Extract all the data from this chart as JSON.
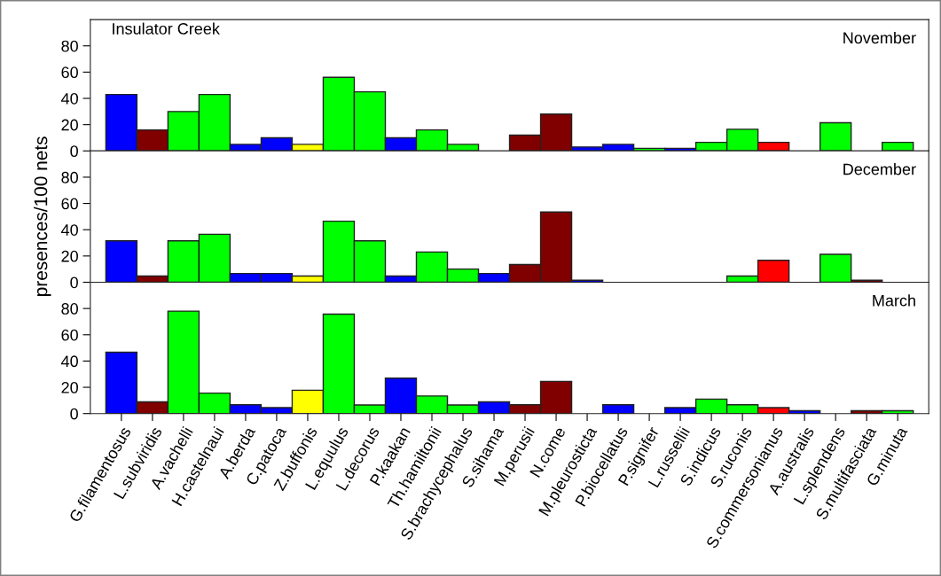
{
  "chart_data": [
    {
      "type": "bar",
      "categories": [
        null,
        null,
        null,
        null,
        null,
        null,
        null,
        null,
        null,
        null,
        null,
        null,
        null,
        null,
        null,
        null,
        null,
        null,
        null,
        null,
        null,
        null,
        null,
        null,
        null,
        null
      ],
      "values": [
        43,
        16,
        30,
        43,
        5,
        10,
        5,
        56,
        45,
        10,
        16,
        5,
        null,
        12,
        28,
        3,
        5,
        2,
        2,
        6.5,
        16.5,
        6.5,
        null,
        21.5,
        null,
        6.5
      ],
      "colors": [
        "#0000ff",
        "#800000",
        "#00ff00",
        "#00ff00",
        "#0000ff",
        "#0000ff",
        "#ffff00",
        "#00ff00",
        "#00ff00",
        "#0000ff",
        "#00ff00",
        "#00ff00",
        "#0000ff",
        "#800000",
        "#800000",
        "#0000ff",
        "#0000ff",
        "#00ff00",
        "#0000ff",
        "#00ff00",
        "#00ff00",
        "#ff0000",
        "#0000ff",
        "#00ff00",
        "#800000",
        "#00ff00"
      ],
      "ylim": [
        0,
        100
      ],
      "yticks": [
        0,
        20,
        40,
        60,
        80
      ],
      "tick_labels": "y",
      "grid": false,
      "legend": false,
      "annotations": [
        "Insulator Creek",
        "November"
      ]
    },
    {
      "type": "bar",
      "categories": [
        null,
        null,
        null,
        null,
        null,
        null,
        null,
        null,
        null,
        null,
        null,
        null,
        null,
        null,
        null,
        null,
        null,
        null,
        null,
        null,
        null,
        null,
        null,
        null,
        null,
        null
      ],
      "values": [
        31.5,
        4.7,
        31.5,
        36.5,
        6.7,
        6.7,
        4.7,
        46.5,
        31.5,
        4.7,
        23,
        10,
        6.7,
        13.5,
        53.5,
        1.5,
        null,
        null,
        null,
        null,
        4.7,
        16.7,
        null,
        21.3,
        1.5,
        null
      ],
      "colors": [
        "#0000ff",
        "#800000",
        "#00ff00",
        "#00ff00",
        "#0000ff",
        "#0000ff",
        "#ffff00",
        "#00ff00",
        "#00ff00",
        "#0000ff",
        "#00ff00",
        "#00ff00",
        "#0000ff",
        "#800000",
        "#800000",
        "#0000ff",
        "#0000ff",
        "#00ff00",
        "#0000ff",
        "#00ff00",
        "#00ff00",
        "#ff0000",
        "#0000ff",
        "#00ff00",
        "#800000",
        "#00ff00"
      ],
      "ylim": [
        0,
        100
      ],
      "yticks": [
        0,
        20,
        40,
        60,
        80
      ],
      "tick_labels": "y",
      "grid": false,
      "legend": false,
      "ylabel": "presences/100 nets",
      "annotations": [
        "December"
      ]
    },
    {
      "type": "bar",
      "categories": [
        "G.filamentosus",
        "L.subviridis",
        "A.vachelli",
        "H.castelnaui",
        "A.berda",
        "C.patoca",
        "Z.buffonis",
        "L.equulus",
        "L.decorus",
        "P.kaakan",
        "Th.hamiltonii",
        "S.brachycephalus",
        "S.sihama",
        "M.perusii",
        "N.come",
        "M.pleurosticta",
        "P.biocellatus",
        "P.signifer",
        "L.russellii",
        "S.indicus",
        "S.ruconis",
        "S.commersonianus",
        "A.australis",
        "L.splendens",
        "S.multifasciata",
        "G.minuta"
      ],
      "values": [
        46.7,
        8.9,
        78,
        15.6,
        6.7,
        4.5,
        17.8,
        75.7,
        6.5,
        27,
        13.4,
        6.5,
        8.9,
        6.7,
        24.5,
        null,
        6.7,
        null,
        4.5,
        11,
        6.7,
        4.5,
        2.2,
        null,
        2.2,
        2.2
      ],
      "colors": [
        "#0000ff",
        "#800000",
        "#00ff00",
        "#00ff00",
        "#0000ff",
        "#0000ff",
        "#ffff00",
        "#00ff00",
        "#00ff00",
        "#0000ff",
        "#00ff00",
        "#00ff00",
        "#0000ff",
        "#800000",
        "#800000",
        "#0000ff",
        "#0000ff",
        "#00ff00",
        "#0000ff",
        "#00ff00",
        "#00ff00",
        "#ff0000",
        "#0000ff",
        "#00ff00",
        "#800000",
        "#00ff00"
      ],
      "ylim": [
        0,
        100
      ],
      "yticks": [
        0,
        20,
        40,
        60,
        80
      ],
      "grid": false,
      "legend": false,
      "annotations": [
        "March"
      ]
    }
  ]
}
